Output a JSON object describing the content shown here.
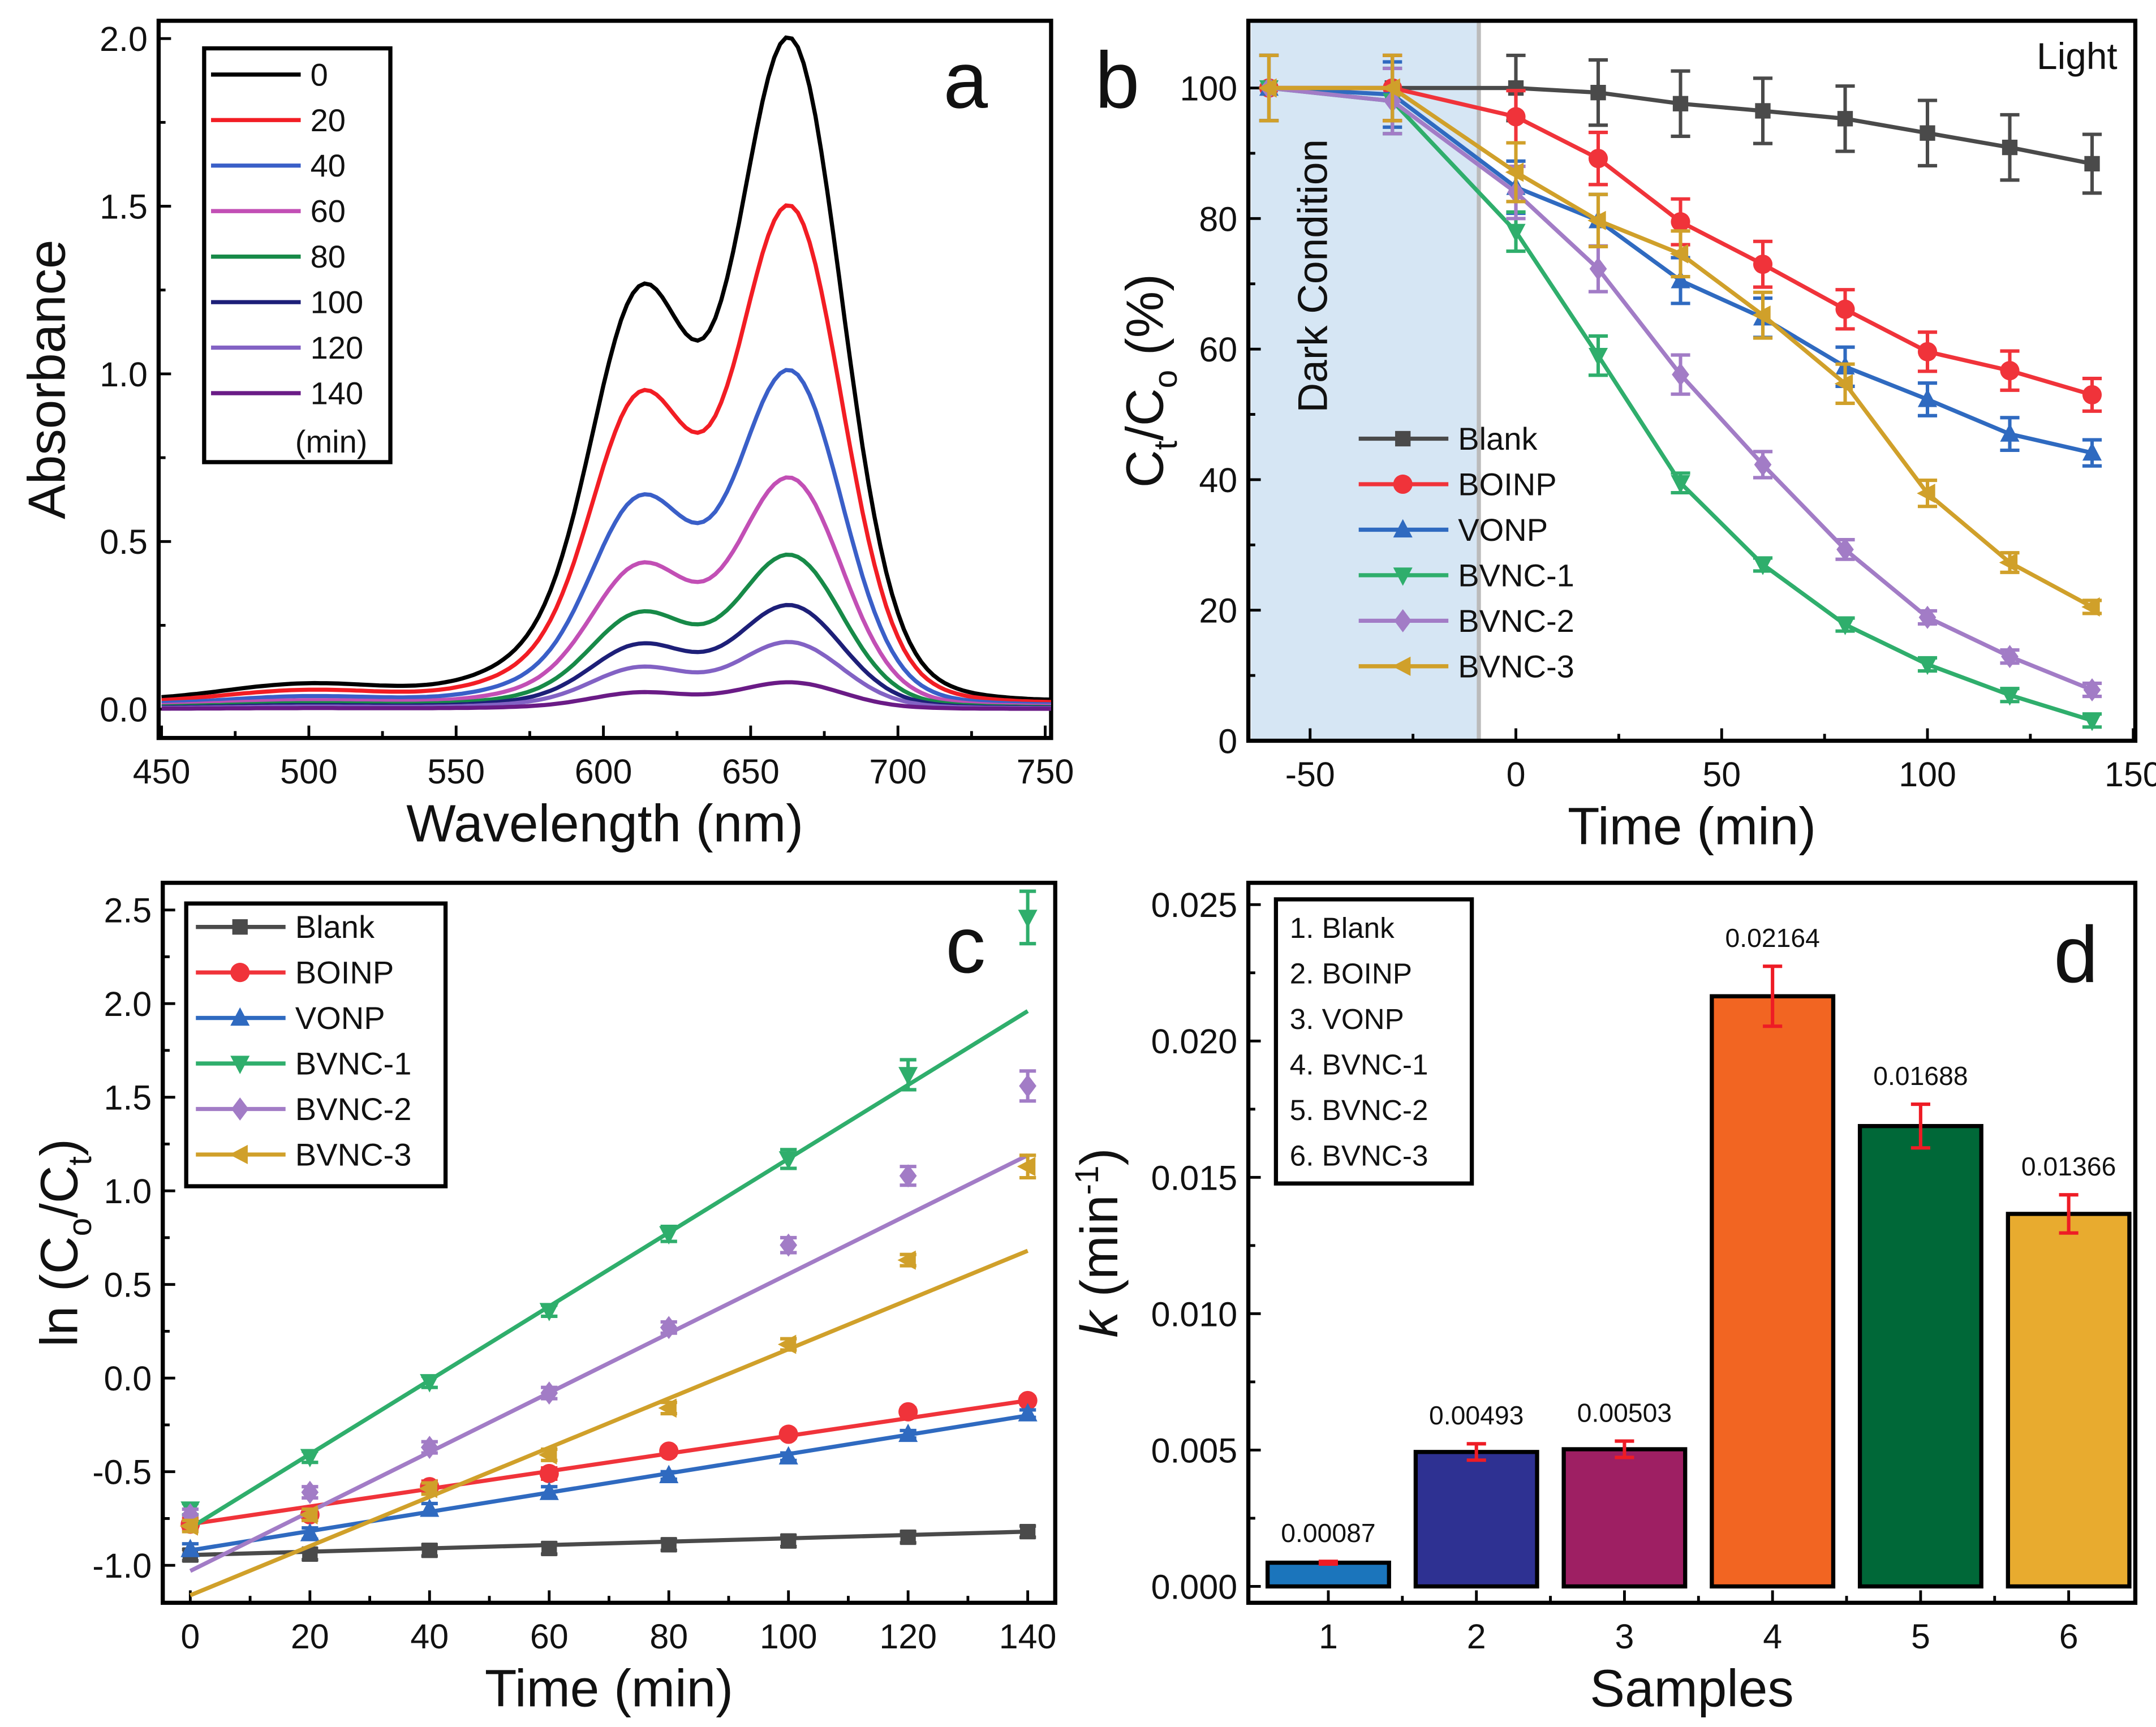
{
  "chart_data": [
    {
      "panel": "a",
      "type": "line",
      "xlabel": "Wavelength (nm)",
      "ylabel": "Absorbance",
      "xlim": [
        449,
        752
      ],
      "ylim": [
        -0.086,
        2.053
      ],
      "xticks": [
        450,
        500,
        550,
        600,
        650,
        700,
        750
      ],
      "xtick_labels": [
        "450",
        "500",
        "550",
        "600",
        "650",
        "700",
        "750"
      ],
      "yticks": [
        0,
        0.5,
        1.0,
        1.5,
        2.0
      ],
      "ytick_labels": [
        "0.0",
        "0.5",
        "1.0",
        "1.5",
        "2.0"
      ],
      "peak_wavelength": 664,
      "shoulder_wavelength": 612,
      "legend_unit": "(min)",
      "legend_placement": "top-left",
      "series": [
        {
          "name": "0",
          "color": "#000000",
          "peak_absorbance": 2.0
        },
        {
          "name": "20",
          "color": "#f21d24",
          "peak_absorbance": 1.5
        },
        {
          "name": "40",
          "color": "#3a5fc8",
          "peak_absorbance": 1.01
        },
        {
          "name": "60",
          "color": "#c24fb5",
          "peak_absorbance": 0.69
        },
        {
          "name": "80",
          "color": "#178a48",
          "peak_absorbance": 0.46
        },
        {
          "name": "100",
          "color": "#1d1f78",
          "peak_absorbance": 0.31
        },
        {
          "name": "120",
          "color": "#8262c4",
          "peak_absorbance": 0.2
        },
        {
          "name": "140",
          "color": "#6a1b86",
          "peak_absorbance": 0.08
        }
      ]
    },
    {
      "panel": "b",
      "type": "line",
      "xlabel": "Time (min)",
      "ylabel_parts": [
        "C",
        "t",
        "/C",
        "o",
        " (%)"
      ],
      "xlim": [
        -65,
        150.5
      ],
      "ylim": [
        0,
        110.3
      ],
      "xticks": [
        -50,
        0,
        50,
        100,
        150
      ],
      "xtick_labels": [
        "-50",
        "0",
        "50",
        "100",
        "150"
      ],
      "yticks": [
        0,
        20,
        40,
        60,
        80,
        100
      ],
      "ytick_labels": [
        "0",
        "20",
        "40",
        "60",
        "80",
        "100"
      ],
      "dark_region": [
        -65,
        -9
      ],
      "dark_label": "Dark Condition",
      "light_label": "Light",
      "dark_color": "#d6e6f4",
      "legend_placement": "center-left",
      "x": [
        -60,
        -30,
        0,
        20,
        40,
        60,
        80,
        100,
        120,
        140
      ],
      "series": [
        {
          "name": "Blank",
          "color": "#4a4a4a",
          "marker": "square",
          "values": [
            100,
            100,
            100,
            99.3,
            97.6,
            96.5,
            95.3,
            93.1,
            90.9,
            88.4
          ],
          "error": [
            5,
            5,
            5,
            5,
            5,
            5,
            5,
            5,
            5,
            4.5
          ]
        },
        {
          "name": "BOINP",
          "color": "#f0333a",
          "marker": "circle",
          "values": [
            100,
            100,
            95.6,
            89.2,
            79.5,
            73,
            66.1,
            59.6,
            56.7,
            53
          ],
          "error": [
            5,
            5,
            4,
            4,
            3.5,
            3.5,
            3,
            3,
            3,
            2.5
          ]
        },
        {
          "name": "VONP",
          "color": "#2f6ac0",
          "marker": "triangle-up",
          "values": [
            100,
            99,
            84.8,
            79.7,
            70.5,
            64.8,
            57.3,
            52.3,
            47,
            44.1
          ],
          "error": [
            5,
            5,
            4,
            4,
            3.5,
            3,
            3,
            2.5,
            2.5,
            2
          ]
        },
        {
          "name": "BVNC-1",
          "color": "#2fae6c",
          "marker": "triangle-down",
          "values": [
            100,
            98,
            78,
            59,
            39.5,
            27,
            17.8,
            11.7,
            7,
            3.1
          ],
          "error": [
            5,
            5,
            3,
            3,
            1.5,
            1,
            1,
            1,
            1,
            1
          ]
        },
        {
          "name": "BVNC-2",
          "color": "#a27cc6",
          "marker": "diamond",
          "values": [
            100,
            98,
            84,
            72.3,
            56.1,
            42.3,
            29.3,
            18.9,
            12.9,
            7.8
          ],
          "error": [
            5,
            5,
            4,
            3.5,
            3,
            2,
            1.5,
            1,
            1,
            1
          ]
        },
        {
          "name": "BVNC-3",
          "color": "#d0a02a",
          "marker": "triangle-left",
          "values": [
            100,
            100,
            87.1,
            79.7,
            74.6,
            65.2,
            54.7,
            37.9,
            27.3,
            20.5
          ],
          "error": [
            5,
            5,
            4.5,
            4,
            3.5,
            3.5,
            3,
            2,
            1.5,
            1
          ]
        }
      ]
    },
    {
      "panel": "c",
      "type": "scatter",
      "xlabel": "Time (min)",
      "ylabel_parts": [
        "ln (C",
        "o",
        "/C",
        "t",
        ")"
      ],
      "xlim": [
        -4.6,
        144.6
      ],
      "ylim": [
        -1.2,
        2.645
      ],
      "xticks": [
        0,
        20,
        40,
        60,
        80,
        100,
        120,
        140
      ],
      "xtick_labels": [
        "0",
        "20",
        "40",
        "60",
        "80",
        "100",
        "120",
        "140"
      ],
      "yticks": [
        -1.0,
        -0.5,
        0,
        0.5,
        1.0,
        1.5,
        2.0,
        2.5
      ],
      "ytick_labels": [
        "-1.0",
        "-0.5",
        "0.0",
        "0.5",
        "1.0",
        "1.5",
        "2.0",
        "2.5"
      ],
      "legend_placement": "top-left",
      "x": [
        0,
        20,
        40,
        60,
        80,
        100,
        120,
        140
      ],
      "series": [
        {
          "name": "Blank",
          "color": "#4a4a4a",
          "marker": "square",
          "values": [
            -0.945,
            -0.94,
            -0.92,
            -0.91,
            -0.89,
            -0.87,
            -0.85,
            -0.82
          ],
          "error": [
            0.03,
            0.03,
            0.03,
            0.03,
            0.03,
            0.03,
            0.03,
            0.03
          ],
          "fit": [
            -0.945,
            -0.82
          ]
        },
        {
          "name": "BOINP",
          "color": "#f0333a",
          "marker": "circle",
          "values": [
            -0.78,
            -0.73,
            -0.58,
            -0.51,
            -0.39,
            -0.3,
            -0.18,
            -0.12
          ],
          "error": [
            0.03,
            0.03,
            0.03,
            0.03,
            0.02,
            0.02,
            0.02,
            0.02
          ],
          "fit": [
            -0.78,
            -0.12
          ]
        },
        {
          "name": "VONP",
          "color": "#2f6ac0",
          "marker": "triangle-up",
          "values": [
            -0.915,
            -0.83,
            -0.7,
            -0.61,
            -0.52,
            -0.42,
            -0.3,
            -0.19
          ],
          "error": [
            0.03,
            0.03,
            0.03,
            0.03,
            0.02,
            0.02,
            0.02,
            0.02
          ],
          "fit": [
            -0.92,
            -0.2
          ]
        },
        {
          "name": "BVNC-1",
          "color": "#2fae6c",
          "marker": "triangle-down",
          "values": [
            -0.7,
            -0.42,
            -0.02,
            0.36,
            0.77,
            1.17,
            1.62,
            2.46
          ],
          "error": [
            0.03,
            0.03,
            0.03,
            0.03,
            0.04,
            0.05,
            0.08,
            0.14
          ],
          "fit": [
            -0.8,
            1.96
          ]
        },
        {
          "name": "BVNC-2",
          "color": "#a27cc6",
          "marker": "diamond",
          "values": [
            -0.73,
            -0.61,
            -0.37,
            -0.08,
            0.27,
            0.71,
            1.08,
            1.56
          ],
          "error": [
            0.03,
            0.03,
            0.03,
            0.03,
            0.03,
            0.04,
            0.05,
            0.08
          ],
          "fit": [
            -1.03,
            1.19
          ]
        },
        {
          "name": "BVNC-3",
          "color": "#d0a02a",
          "marker": "triangle-left",
          "values": [
            -0.79,
            -0.73,
            -0.59,
            -0.41,
            -0.16,
            0.18,
            0.63,
            1.13
          ],
          "error": [
            0.03,
            0.03,
            0.03,
            0.03,
            0.03,
            0.03,
            0.03,
            0.06
          ],
          "fit": [
            -1.16,
            0.68
          ]
        }
      ]
    },
    {
      "panel": "d",
      "type": "bar",
      "xlabel": "Samples",
      "ylabel_parts": [
        "k",
        " (min",
        "-1",
        ")"
      ],
      "xlim": [
        0.46,
        6.45
      ],
      "ylim": [
        -0.0006,
        0.0258
      ],
      "yticks": [
        0,
        0.005,
        0.01,
        0.015,
        0.02,
        0.025
      ],
      "ytick_labels": [
        "0.000",
        "0.005",
        "0.010",
        "0.015",
        "0.020",
        "0.025"
      ],
      "categories": [
        "1",
        "2",
        "3",
        "4",
        "5",
        "6"
      ],
      "values": [
        0.00087,
        0.00493,
        0.00503,
        0.02164,
        0.01688,
        0.01366
      ],
      "value_labels": [
        "0.00087",
        "0.00493",
        "0.00503",
        "0.02164",
        "0.01688",
        "0.01366"
      ],
      "error": [
        5e-05,
        0.0003,
        0.0003,
        0.0011,
        0.0008,
        0.0007
      ],
      "error_color": "#ee1c25",
      "colors": [
        "#1b75bc",
        "#2e3192",
        "#9e1f63",
        "#f26522",
        "#006838",
        "#e8ab2f"
      ],
      "legend_placement": "top-left",
      "legend": [
        "1.  Blank",
        "2.  BOINP",
        "3.  VONP",
        "4.  BVNC-1",
        "5.  BVNC-2",
        "6.  BVNC-3"
      ]
    }
  ],
  "panel_labels": [
    "a",
    "b",
    "c",
    "d"
  ]
}
